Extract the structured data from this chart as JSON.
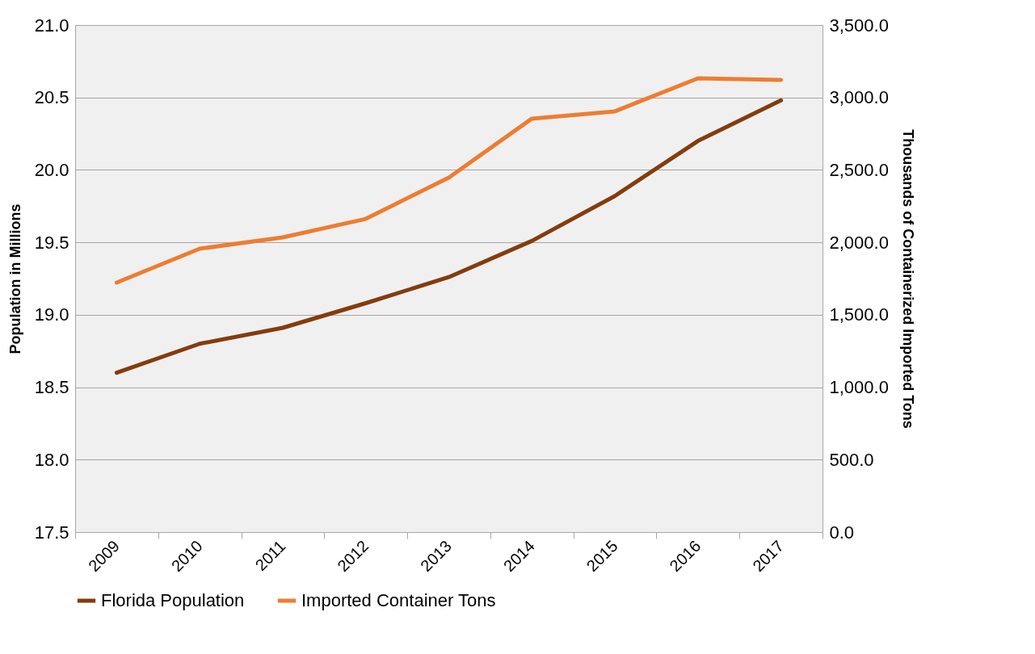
{
  "chart_data": {
    "type": "line",
    "ylabel": "Population in Millions",
    "y2label": "Thousands of Containerized Imported Tons",
    "categories": [
      "2009",
      "2010",
      "2011",
      "2012",
      "2013",
      "2014",
      "2015",
      "2016",
      "2017"
    ],
    "series": [
      {
        "name": "Florida Population",
        "color": "#843c0c",
        "values": [
          18.6,
          18.8,
          18.91,
          19.08,
          19.26,
          19.51,
          19.82,
          20.2,
          20.48
        ]
      },
      {
        "name": "Imported Container Tons",
        "color": "#ed7d31",
        "axis": "y2",
        "values": [
          1722,
          1956,
          2034,
          2162,
          2447,
          2854,
          2904,
          3132,
          3121
        ]
      }
    ],
    "ylim": [
      17.5,
      21.0
    ],
    "yticks": [
      {
        "value": 17.5,
        "label": "17.5"
      },
      {
        "value": 18.0,
        "label": "18.0"
      },
      {
        "value": 18.5,
        "label": "18.5"
      },
      {
        "value": 19.0,
        "label": "19.0"
      },
      {
        "value": 19.5,
        "label": "19.5"
      },
      {
        "value": 20.0,
        "label": "20.0"
      },
      {
        "value": 20.5,
        "label": "20.5"
      },
      {
        "value": 21.0,
        "label": "21.0"
      }
    ],
    "y2lim": [
      0,
      3500
    ],
    "y2ticks": [
      {
        "value": 0,
        "label": "0.0"
      },
      {
        "value": 500,
        "label": "500.0"
      },
      {
        "value": 1000,
        "label": "1,000.0"
      },
      {
        "value": 1500,
        "label": "1,500.0"
      },
      {
        "value": 2000,
        "label": "2,000.0"
      },
      {
        "value": 2500,
        "label": "2,500.0"
      },
      {
        "value": 3000,
        "label": "3,000.0"
      },
      {
        "value": 3500,
        "label": "3,500.0"
      }
    ],
    "grid": "y",
    "legend": "bottom",
    "marker": "none",
    "line_style": "solid"
  }
}
